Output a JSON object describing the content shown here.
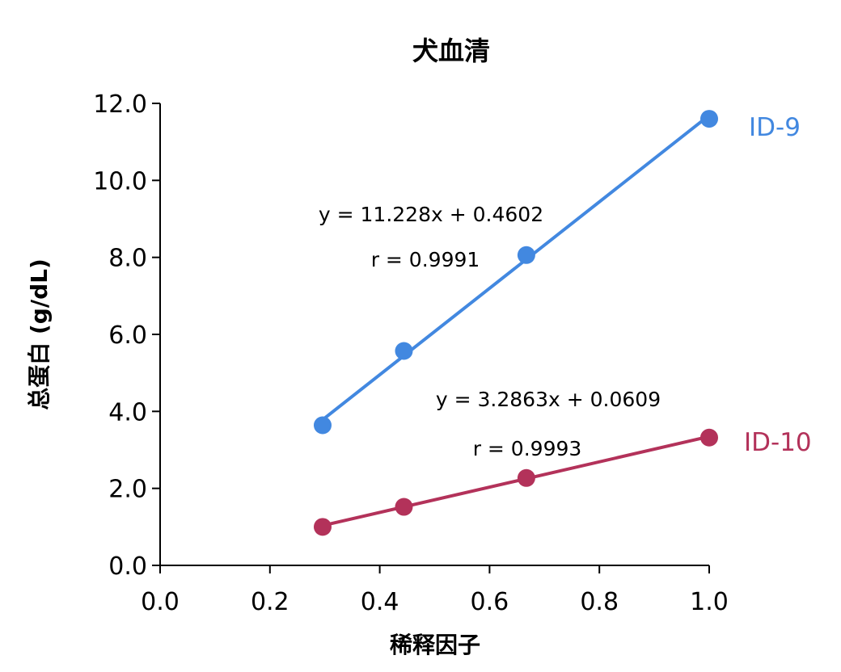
{
  "chart_data": {
    "type": "scatter",
    "title": "犬血清",
    "xlabel": "稀释因子",
    "ylabel": "总蛋白 (g/dL)",
    "xlim": [
      0,
      1.0
    ],
    "ylim": [
      0,
      12.0
    ],
    "xticks": [
      "0.0",
      "0.2",
      "0.4",
      "0.6",
      "0.8",
      "1.0"
    ],
    "yticks": [
      "0.0",
      "2.0",
      "4.0",
      "6.0",
      "8.0",
      "10.0",
      "12.0"
    ],
    "grid": false,
    "series": [
      {
        "name": "ID-9",
        "color": "#4288e0",
        "x": [
          0.296,
          0.444,
          0.667,
          1.0
        ],
        "y": [
          3.64,
          5.57,
          8.06,
          11.6
        ],
        "trendline": {
          "slope": 11.228,
          "intercept": 0.4602
        },
        "equation": "y = 11.228x + 0.4602",
        "r": "r = 0.9991"
      },
      {
        "name": "ID-10",
        "color": "#b3325a",
        "x": [
          0.296,
          0.444,
          0.667,
          1.0
        ],
        "y": [
          1.0,
          1.52,
          2.27,
          3.32
        ],
        "trendline": {
          "slope": 3.2863,
          "intercept": 0.0609
        },
        "equation": "y = 3.2863x + 0.0609",
        "r": "r = 0.9993"
      }
    ]
  }
}
